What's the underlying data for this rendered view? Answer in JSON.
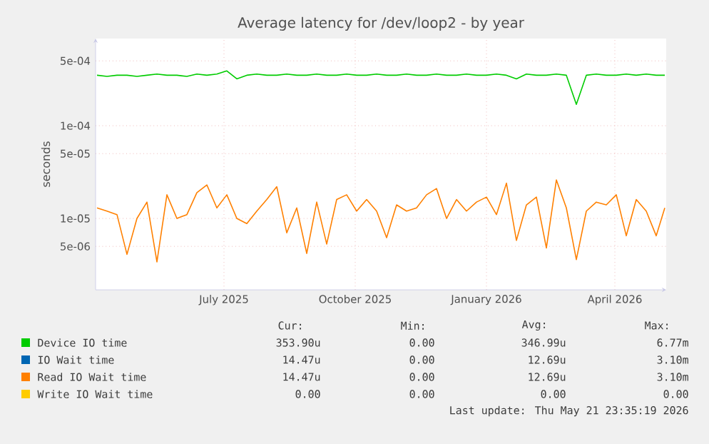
{
  "chart_data": {
    "type": "line",
    "title": "Average latency for /dev/loop2 - by year",
    "ylabel": "seconds",
    "x": [
      "2025-04-03",
      "2025-04-10",
      "2025-04-17",
      "2025-04-24",
      "2025-05-01",
      "2025-05-08",
      "2025-05-15",
      "2025-05-22",
      "2025-05-29",
      "2025-06-05",
      "2025-06-12",
      "2025-06-19",
      "2025-06-26",
      "2025-07-03",
      "2025-07-10",
      "2025-07-17",
      "2025-07-24",
      "2025-07-31",
      "2025-08-07",
      "2025-08-14",
      "2025-08-21",
      "2025-08-28",
      "2025-09-04",
      "2025-09-11",
      "2025-09-18",
      "2025-09-25",
      "2025-10-02",
      "2025-10-09",
      "2025-10-16",
      "2025-10-23",
      "2025-10-30",
      "2025-11-06",
      "2025-11-13",
      "2025-11-20",
      "2025-11-27",
      "2025-12-04",
      "2025-12-11",
      "2025-12-18",
      "2025-12-25",
      "2026-01-01",
      "2026-01-08",
      "2026-01-15",
      "2026-01-22",
      "2026-01-29",
      "2026-02-05",
      "2026-02-12",
      "2026-02-19",
      "2026-02-26",
      "2026-03-05",
      "2026-03-12",
      "2026-03-19",
      "2026-03-26",
      "2026-04-02",
      "2026-04-09",
      "2026-04-16",
      "2026-04-23",
      "2026-04-30",
      "2026-05-06"
    ],
    "series": [
      {
        "name": "Device IO time",
        "color": "#00cc00",
        "values": [
          0.00035,
          0.00034,
          0.00035,
          0.00035,
          0.00034,
          0.00035,
          0.00036,
          0.00035,
          0.00035,
          0.00034,
          0.00036,
          0.00035,
          0.00036,
          0.00039,
          0.00032,
          0.00035,
          0.00036,
          0.00035,
          0.00035,
          0.00036,
          0.00035,
          0.00035,
          0.00036,
          0.00035,
          0.00035,
          0.00036,
          0.00035,
          0.00035,
          0.00036,
          0.00035,
          0.00035,
          0.00036,
          0.00035,
          0.00035,
          0.00036,
          0.00035,
          0.00035,
          0.00036,
          0.00035,
          0.00035,
          0.00036,
          0.00035,
          0.00032,
          0.00036,
          0.00035,
          0.00035,
          0.00036,
          0.00035,
          0.00017,
          0.00035,
          0.00036,
          0.00035,
          0.00035,
          0.00036,
          0.00035,
          0.00036,
          0.00035,
          0.00035
        ]
      },
      {
        "name": "IO Wait time",
        "color": "#0066b3",
        "values": [
          null,
          null,
          null,
          null,
          null,
          null,
          null,
          null,
          null,
          null,
          null,
          null,
          null,
          null,
          null,
          null,
          null,
          null,
          null,
          null,
          null,
          null,
          null,
          null,
          null,
          null,
          null,
          null,
          null,
          null,
          null,
          null,
          null,
          null,
          null,
          null,
          null,
          null,
          null,
          null,
          null,
          null,
          null,
          null,
          null,
          null,
          null,
          null,
          null,
          null,
          null,
          null,
          null,
          null,
          null,
          null,
          null,
          null
        ]
      },
      {
        "name": "Read IO Wait time",
        "color": "#ff8000",
        "values": [
          1.3e-05,
          1.2e-05,
          1.1e-05,
          4.1e-06,
          1e-05,
          1.5e-05,
          3.4e-06,
          1.8e-05,
          1e-05,
          1.1e-05,
          1.9e-05,
          2.3e-05,
          1.3e-05,
          1.8e-05,
          1e-05,
          8.8e-06,
          1.2e-05,
          1.6e-05,
          2.2e-05,
          7e-06,
          1.3e-05,
          4.2e-06,
          1.5e-05,
          5.3e-06,
          1.6e-05,
          1.8e-05,
          1.2e-05,
          1.6e-05,
          1.2e-05,
          6.2e-06,
          1.4e-05,
          1.2e-05,
          1.3e-05,
          1.8e-05,
          2.1e-05,
          1e-05,
          1.6e-05,
          1.2e-05,
          1.5e-05,
          1.7e-05,
          1.1e-05,
          2.4e-05,
          5.8e-06,
          1.4e-05,
          1.7e-05,
          4.8e-06,
          2.6e-05,
          1.3e-05,
          3.6e-06,
          1.2e-05,
          1.5e-05,
          1.4e-05,
          1.8e-05,
          6.5e-06,
          1.6e-05,
          1.2e-05,
          6.5e-06,
          1.3e-05
        ]
      },
      {
        "name": "Write IO Wait time",
        "color": "#ffcc00",
        "values": [
          null,
          null,
          null,
          null,
          null,
          null,
          null,
          null,
          null,
          null,
          null,
          null,
          null,
          null,
          null,
          null,
          null,
          null,
          null,
          null,
          null,
          null,
          null,
          null,
          null,
          null,
          null,
          null,
          null,
          null,
          null,
          null,
          null,
          null,
          null,
          null,
          null,
          null,
          null,
          null,
          null,
          null,
          null,
          null,
          null,
          null,
          null,
          null,
          null,
          null,
          null,
          null,
          null,
          null,
          null,
          null,
          null,
          null
        ]
      }
    ],
    "log": "y",
    "grid": true,
    "legend": "bottom",
    "xlim": [
      "2025-04-02",
      "2026-05-07"
    ],
    "xticks": [
      {
        "value": "2025-07-01",
        "label": "July 2025"
      },
      {
        "value": "2025-10-01",
        "label": "October 2025"
      },
      {
        "value": "2026-01-01",
        "label": "January 2026"
      },
      {
        "value": "2026-04-01",
        "label": "April 2026"
      }
    ],
    "ylim": [
      1.7e-06,
      0.00087
    ],
    "yticks": [
      {
        "value": 5e-06,
        "label": "5e-06"
      },
      {
        "value": 1e-05,
        "label": "1e-05"
      },
      {
        "value": 5e-05,
        "label": "5e-05"
      },
      {
        "value": 0.0001,
        "label": "1e-04"
      },
      {
        "value": 0.0005,
        "label": "5e-04"
      }
    ],
    "annotations": [
      "Cur:",
      "Min:",
      "Avg:",
      "Max:",
      "353.90u",
      "0.00",
      "346.99u",
      "6.77m",
      "14.47u",
      "0.00",
      "12.69u",
      "3.10m",
      "14.47u",
      "0.00",
      "12.69u",
      "3.10m",
      "0.00",
      "0.00",
      "0.00",
      "0.00",
      "Last update: Thu May 21 23:35:19 2026"
    ]
  }
}
